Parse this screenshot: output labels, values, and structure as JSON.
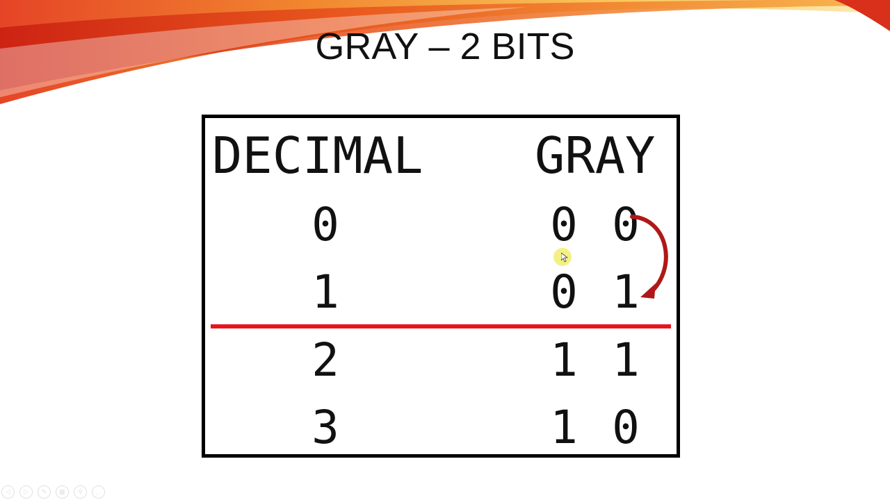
{
  "slide": {
    "title": "GRAY – 2 BITS",
    "table": {
      "headers": {
        "decimal": "DECIMAL",
        "gray": "GRAY"
      },
      "rows": [
        {
          "decimal": "0",
          "gray_bit1": "0",
          "gray_bit0": "0"
        },
        {
          "decimal": "1",
          "gray_bit1": "0",
          "gray_bit0": "1"
        },
        {
          "decimal": "2",
          "gray_bit1": "1",
          "gray_bit0": "1"
        },
        {
          "decimal": "3",
          "gray_bit1": "1",
          "gray_bit0": "0"
        }
      ]
    },
    "colors": {
      "divider": "#e8141c",
      "arrow": "#b01818"
    }
  },
  "toolbar": {
    "icons": [
      "previous-icon",
      "next-icon",
      "pen-icon",
      "slides-icon",
      "zoom-icon",
      "more-icon"
    ]
  }
}
